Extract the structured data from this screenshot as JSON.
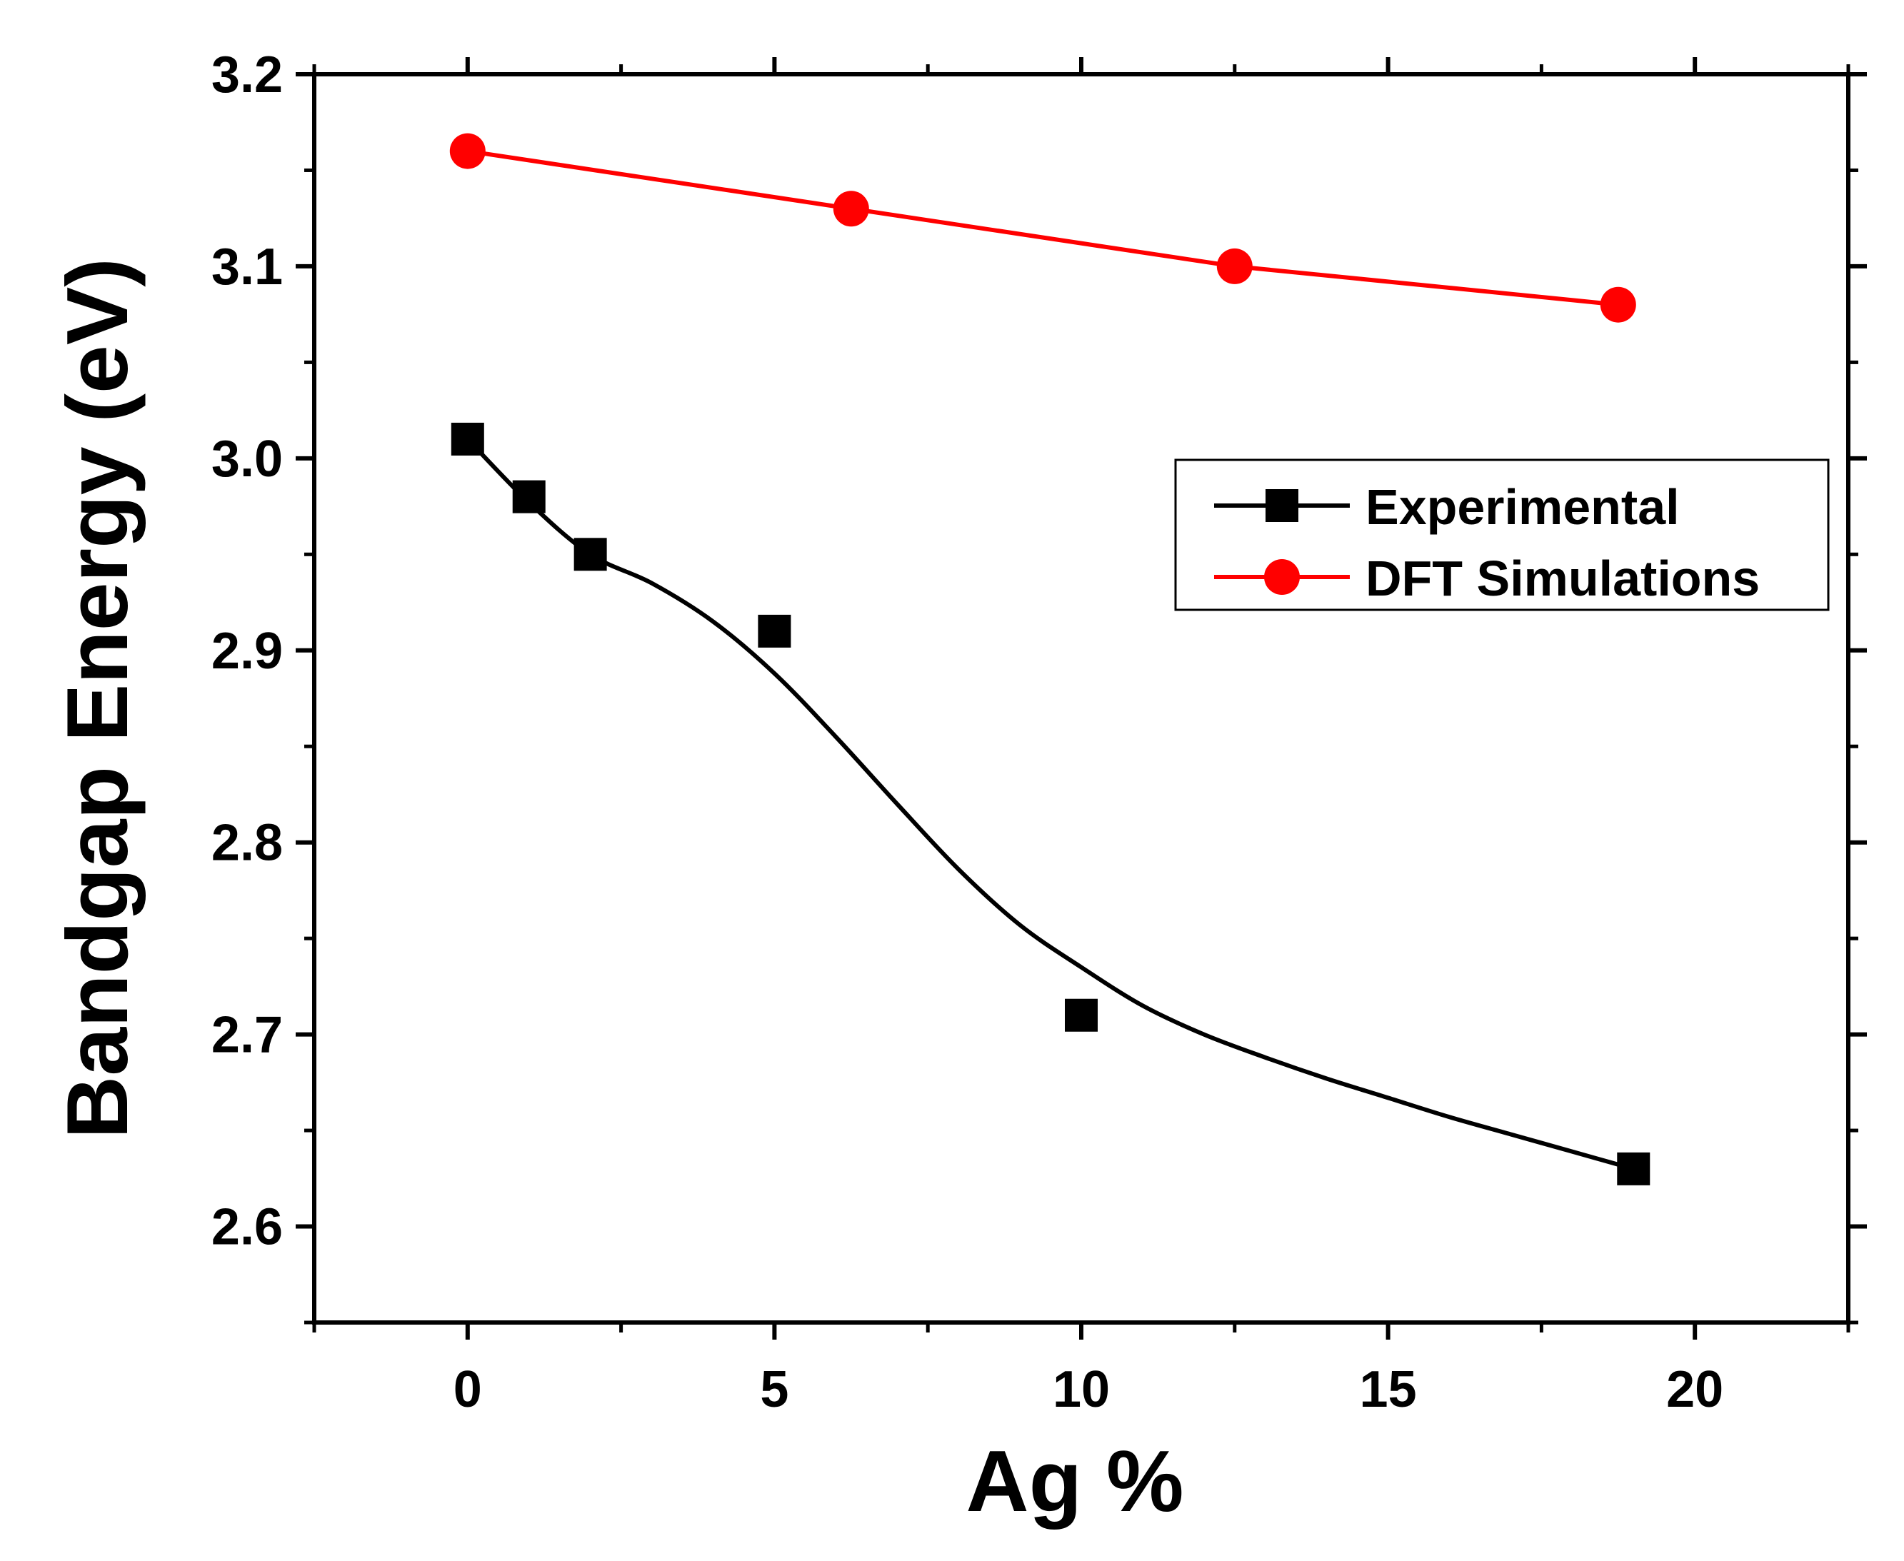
{
  "chart_data": {
    "type": "line",
    "title": "",
    "xlabel": "Ag %",
    "ylabel": "Bandgap Energy (eV)",
    "xlim": [
      -2.5,
      22.5
    ],
    "ylim": [
      2.55,
      3.2
    ],
    "x_ticks": [
      0,
      5,
      10,
      15,
      20
    ],
    "x_tick_labels": [
      "0",
      "5",
      "10",
      "15",
      "20"
    ],
    "x_minor_ticks": [
      -2.5,
      2.5,
      7.5,
      12.5,
      17.5,
      22.5
    ],
    "y_ticks": [
      2.6,
      2.7,
      2.8,
      2.9,
      3.0,
      3.1,
      3.2
    ],
    "y_tick_labels": [
      "2.6",
      "2.7",
      "2.8",
      "2.9",
      "3.0",
      "3.1",
      "3.2"
    ],
    "y_minor_ticks": [
      2.55,
      2.65,
      2.75,
      2.85,
      2.95,
      3.05,
      3.15
    ],
    "grid": false,
    "legend_position": "right",
    "series": [
      {
        "name": "Experimental",
        "color": "#000000",
        "marker": "square",
        "line": "smooth-fit",
        "x": [
          0,
          1,
          2,
          5,
          10,
          19
        ],
        "y": [
          3.01,
          2.98,
          2.95,
          2.91,
          2.71,
          2.63
        ],
        "fit_x": [
          0,
          1,
          2,
          3,
          4,
          5,
          6,
          7,
          8,
          9,
          10,
          11,
          12,
          13,
          14,
          15,
          16,
          17,
          18,
          19
        ],
        "fit_y": [
          3.01,
          2.977,
          2.95,
          2.935,
          2.915,
          2.888,
          2.855,
          2.82,
          2.786,
          2.757,
          2.735,
          2.715,
          2.7,
          2.688,
          2.677,
          2.667,
          2.657,
          2.648,
          2.639,
          2.63
        ]
      },
      {
        "name": "DFT Simulations",
        "color": "#ff0000",
        "marker": "circle",
        "line": "straight",
        "x": [
          0,
          6.25,
          12.5,
          18.75
        ],
        "y": [
          3.16,
          3.13,
          3.1,
          3.08
        ]
      }
    ]
  }
}
